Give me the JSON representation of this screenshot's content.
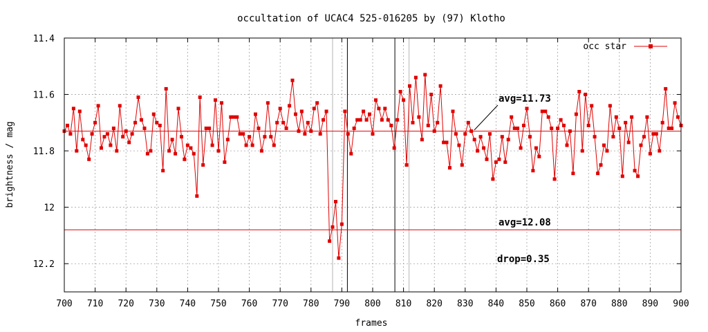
{
  "chart_data": {
    "type": "line",
    "title": "occultation of UCAC4 525-016205 by (97) Klotho",
    "xlabel": "frames",
    "ylabel": "brightness / mag",
    "xlim": [
      700,
      900
    ],
    "ylim": [
      11.4,
      12.3
    ],
    "y_reversed": true,
    "grid": true,
    "legend_position": "top-right",
    "x_ticks": [
      "700",
      "710",
      "720",
      "730",
      "740",
      "750",
      "760",
      "770",
      "780",
      "790",
      "800",
      "810",
      "820",
      "830",
      "840",
      "850",
      "860",
      "870",
      "880",
      "890",
      "900"
    ],
    "y_ticks": [
      "11.4",
      "11.6",
      "11.8",
      "12",
      "12.2"
    ],
    "series": [
      {
        "name": "occ star",
        "color": "#e00000",
        "x_start": 700,
        "x_step": 1,
        "values": [
          11.73,
          11.71,
          11.74,
          11.65,
          11.8,
          11.66,
          11.76,
          11.78,
          11.83,
          11.74,
          11.7,
          11.64,
          11.79,
          11.75,
          11.74,
          11.78,
          11.72,
          11.8,
          11.64,
          11.75,
          11.73,
          11.77,
          11.74,
          11.7,
          11.61,
          11.69,
          11.72,
          11.81,
          11.8,
          11.67,
          11.7,
          11.71,
          11.87,
          11.58,
          11.8,
          11.76,
          11.81,
          11.65,
          11.75,
          11.83,
          11.78,
          11.79,
          11.81,
          11.96,
          11.61,
          11.85,
          11.72,
          11.72,
          11.78,
          11.62,
          11.8,
          11.63,
          11.84,
          11.76,
          11.68,
          11.68,
          11.68,
          11.74,
          11.74,
          11.78,
          11.75,
          11.78,
          11.67,
          11.72,
          11.8,
          11.75,
          11.63,
          11.75,
          11.78,
          11.7,
          11.65,
          11.7,
          11.72,
          11.64,
          11.55,
          11.67,
          11.73,
          11.66,
          11.74,
          11.7,
          11.73,
          11.65,
          11.63,
          11.74,
          11.69,
          11.66,
          12.12,
          12.07,
          11.98,
          12.18,
          12.06,
          11.66,
          11.74,
          11.81,
          11.72,
          11.69,
          11.69,
          11.66,
          11.69,
          11.67,
          11.74,
          11.62,
          11.65,
          11.69,
          11.65,
          11.69,
          11.71,
          11.79,
          11.69,
          11.59,
          11.62,
          11.85,
          11.57,
          11.7,
          11.54,
          11.68,
          11.76,
          11.53,
          11.71,
          11.6,
          11.73,
          11.7,
          11.57,
          11.77,
          11.77,
          11.86,
          11.66,
          11.74,
          11.78,
          11.85,
          11.74,
          11.7,
          11.73,
          11.76,
          11.8,
          11.75,
          11.79,
          11.83,
          11.74,
          11.9,
          11.84,
          11.83,
          11.75,
          11.84,
          11.76,
          11.68,
          11.72,
          11.72,
          11.79,
          11.71,
          11.65,
          11.75,
          11.87,
          11.79,
          11.82,
          11.66,
          11.66,
          11.68,
          11.72,
          11.9,
          11.72,
          11.69,
          11.71,
          11.78,
          11.73,
          11.88,
          11.67,
          11.59,
          11.8,
          11.6,
          11.71,
          11.64,
          11.75,
          11.88,
          11.85,
          11.78,
          11.8,
          11.64,
          11.75,
          11.68,
          11.72,
          11.89,
          11.7,
          11.77,
          11.68,
          11.87,
          11.89,
          11.78,
          11.75,
          11.68,
          11.81,
          11.74,
          11.74,
          11.8,
          11.7,
          11.58,
          11.72,
          11.72,
          11.63,
          11.68,
          11.71
        ]
      }
    ],
    "reference_lines": [
      {
        "y": 11.73,
        "label": "avg=11.73",
        "color": "#e00000"
      },
      {
        "y": 12.08,
        "label": "avg=12.08",
        "color": "#e00000"
      }
    ],
    "vertical_markers": [
      {
        "x": 787,
        "color": "#b4b4b4"
      },
      {
        "x": 791.8,
        "color": "#000000"
      },
      {
        "x": 807.2,
        "color": "#000000"
      },
      {
        "x": 811.8,
        "color": "#b4b4b4"
      }
    ],
    "annotations": [
      "avg=11.73",
      "avg=12.08",
      "drop=0.35"
    ]
  }
}
